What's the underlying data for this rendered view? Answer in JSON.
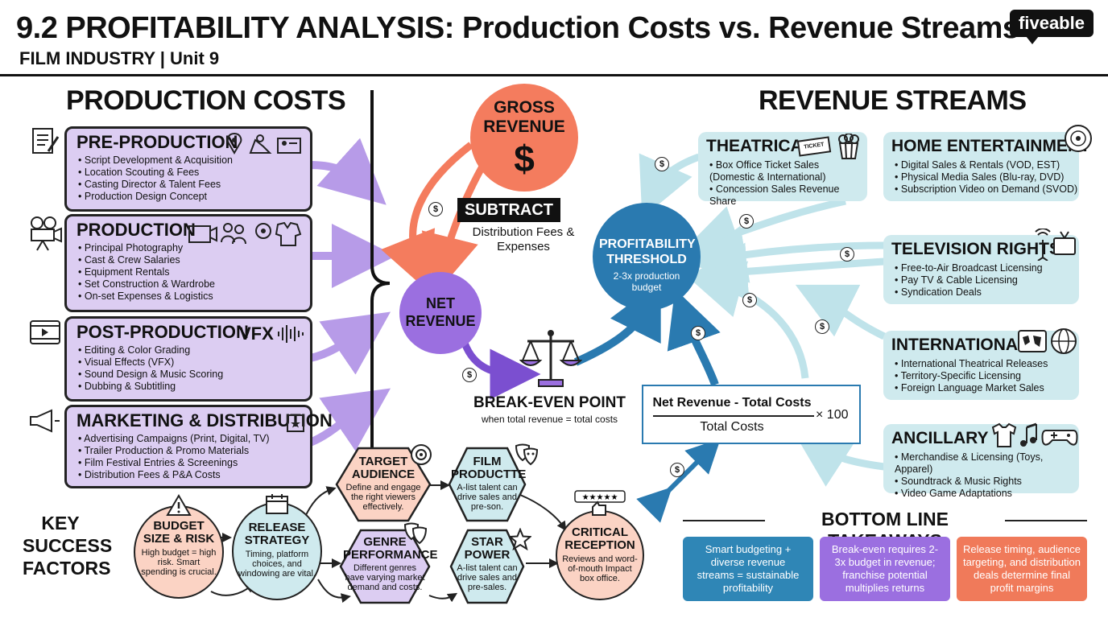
{
  "header": {
    "title": "9.2 PROFITABILITY ANALYSIS: Production Costs vs. Revenue Streams",
    "subtitle": "FILM INDUSTRY | Unit 9",
    "logo": "fiveable"
  },
  "costs": {
    "heading": "PRODUCTION COSTS",
    "boxes": [
      {
        "title": "PRE-PRODUCTION",
        "items": [
          "Script Development & Acquisition",
          "Location Scouting & Fees",
          "Casting Director & Talent Fees",
          "Production Design Concept"
        ]
      },
      {
        "title": "PRODUCTION",
        "items": [
          "Principal Photography",
          "Cast & Crew Salaries",
          "Equipment Rentals",
          "Set Construction & Wardrobe",
          "On-set Expenses & Logistics"
        ]
      },
      {
        "title": "POST-PRODUCTION",
        "items": [
          "Editing & Color Grading",
          "Visual Effects (VFX)",
          "Sound Design & Music Scoring",
          "Dubbing & Subtitling"
        ]
      },
      {
        "title": "MARKETING & DISTRIBUTION",
        "items": [
          "Advertising Campaigns (Print, Digital, TV)",
          "Trailer Production & Promo Materials",
          "Film Festival Entries & Screenings",
          "Distribution Fees & P&A Costs"
        ]
      }
    ],
    "vfx_label": "VFX"
  },
  "center": {
    "gross": {
      "title": "GROSS REVENUE",
      "symbol": "$"
    },
    "subtract": {
      "label": "SUBTRACT",
      "text": "Distribution Fees & Expenses"
    },
    "net": {
      "title": "NET REVENUE"
    },
    "breakeven": {
      "title": "BREAK-EVEN POINT",
      "text": "when total revenue = total costs"
    },
    "threshold": {
      "title": "PROFITABILITY THRESHOLD",
      "text": "2-3x production budget"
    },
    "formula": {
      "numerator": "Net Revenue - Total Costs",
      "denominator": "Total Costs",
      "multiplier": "× 100"
    }
  },
  "revenue": {
    "heading": "REVENUE STREAMS",
    "boxes": [
      {
        "title": "THEATRICAL",
        "items": [
          "Box Office Ticket Sales (Domestic & International)",
          "Concession Sales Revenue Share"
        ]
      },
      {
        "title": "HOME ENTERTAINMENT",
        "items": [
          "Digital Sales & Rentals (VOD, EST)",
          "Physical Media Sales (Blu-ray, DVD)",
          "Subscription Video on Demand (SVOD)"
        ]
      },
      {
        "title": "TELEVISION RIGHTS",
        "items": [
          "Free-to-Air Broadcast Licensing",
          "Pay TV & Cable Licensing",
          "Syndication Deals"
        ]
      },
      {
        "title": "INTERNATIONAL",
        "items": [
          "International Theatrical Releases",
          "Territory-Specific Licensing",
          "Foreign Language Market Sales"
        ]
      },
      {
        "title": "ANCILLARY",
        "items": [
          "Merchandise & Licensing (Toys, Apparel)",
          "Soundtrack & Music Rights",
          "Video Game Adaptations"
        ]
      }
    ],
    "ticket_label": "TICKET"
  },
  "factors": {
    "heading": "KEY SUCCESS FACTORS",
    "budget": {
      "title": "BUDGET SIZE & RISK",
      "text": "High budget = high risk. Smart spending is crucial."
    },
    "release": {
      "title": "RELEASE STRATEGY",
      "text": "Timing, platform choices, and windowing are vital."
    },
    "target": {
      "title": "TARGET AUDIENCE",
      "text": "Define and engage the right viewers effectively."
    },
    "film": {
      "title": "FILM PRODUCTTE",
      "text": "A-list talent can drive sales and pre-son."
    },
    "genre": {
      "title": "GENRE PERFORMANCE",
      "text": "Different genres have varying market demand and costs."
    },
    "star": {
      "title": "STAR POWER",
      "text": "A-list talent can drive sales and pre-sales."
    },
    "critical": {
      "title": "CRITICAL RECEPTION",
      "text": "Reviews and word-of-mouth Impact box office."
    }
  },
  "takeaways": {
    "heading": "BOTTOM LINE TAKEAWAYS",
    "items": [
      {
        "text": "Smart budgeting + diverse revenue streams = sustainable profitability",
        "color": "#2f86b6"
      },
      {
        "text": "Break-even requires 2-3x budget in revenue; franchise potential multiplies returns",
        "color": "#9b6fe0"
      },
      {
        "text": "Release timing, audience targeting, and distribution deals determine final profit margins",
        "color": "#f07a5a"
      }
    ]
  },
  "colors": {
    "cost_fill": "#dccdf2",
    "revenue_fill": "#cfeaee",
    "gross": "#f47c5e",
    "net": "#9b6fe0",
    "threshold": "#2a7ab0",
    "teal_arrow": "#bfe3ea",
    "coral": "#fbd3c4"
  },
  "icons": {
    "coin": "$"
  }
}
